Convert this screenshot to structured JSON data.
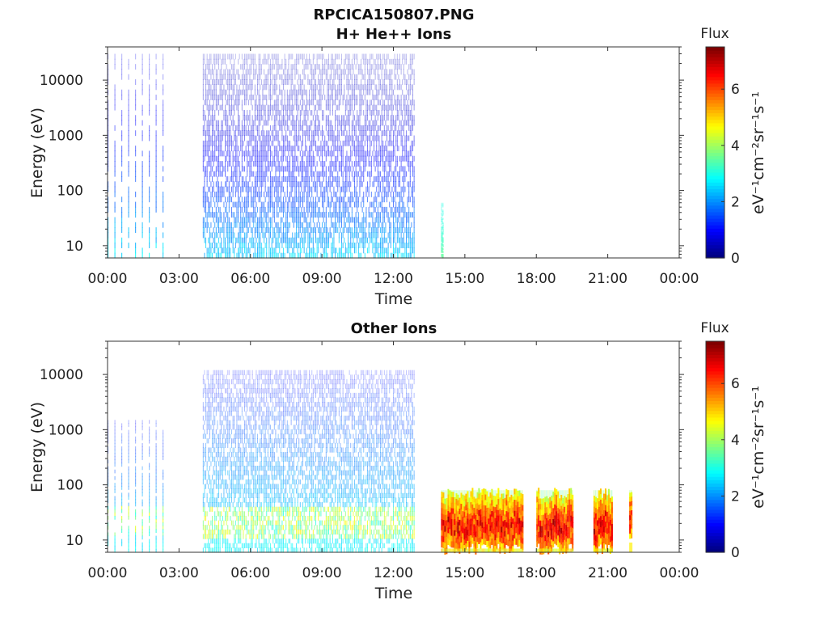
{
  "figure_title": "RPCICA150807.PNG",
  "chart_data": [
    {
      "type": "heatmap",
      "title": "H+ He++ Ions",
      "xlabel": "Time",
      "ylabel": "Energy (eV)",
      "x_ticks": [
        "00:00",
        "03:00",
        "06:00",
        "09:00",
        "12:00",
        "15:00",
        "18:00",
        "21:00",
        "00:00"
      ],
      "x_range_hours": [
        0,
        24
      ],
      "y_scale": "log",
      "y_ticks": [
        "10",
        "100",
        "1000",
        "10000"
      ],
      "y_range": [
        6,
        40000
      ],
      "colorbar": {
        "label": "Flux",
        "units": "eV⁻¹cm⁻²sr⁻¹s⁻¹",
        "ticks": [
          "0",
          "2",
          "4",
          "6"
        ],
        "range": [
          0,
          7.5
        ],
        "colormap": "jet"
      },
      "segments": [
        {
          "start_h": 0.0,
          "end_h": 2.5,
          "e_max": 30000,
          "style": "sparse-stripes",
          "peak_flux_low_e": 2.8,
          "bg_flux_high_e": 0.8
        },
        {
          "start_h": 4.0,
          "end_h": 12.9,
          "e_max": 30000,
          "style": "dense",
          "peak_flux_low_e": 2.6,
          "bg_flux_high_e": 0.5
        },
        {
          "start_h": 14.0,
          "end_h": 14.1,
          "e_max": 60,
          "style": "trace",
          "peak_flux_low_e": 3.6,
          "bg_flux_high_e": 3.0
        }
      ]
    },
    {
      "type": "heatmap",
      "title": "Other Ions",
      "xlabel": "Time",
      "ylabel": "Energy (eV)",
      "x_ticks": [
        "00:00",
        "03:00",
        "06:00",
        "09:00",
        "12:00",
        "15:00",
        "18:00",
        "21:00",
        "00:00"
      ],
      "x_range_hours": [
        0,
        24
      ],
      "y_scale": "log",
      "y_ticks": [
        "10",
        "100",
        "1000",
        "10000"
      ],
      "y_range": [
        6,
        40000
      ],
      "colorbar": {
        "label": "Flux",
        "units": "eV⁻¹cm⁻²sr⁻¹s⁻¹",
        "ticks": [
          "0",
          "2",
          "4",
          "6"
        ],
        "range": [
          0,
          7.5
        ],
        "colormap": "jet"
      },
      "segments": [
        {
          "start_h": 0.0,
          "end_h": 2.5,
          "e_max": 1500,
          "style": "sparse-stripes",
          "band_e": [
            12,
            45
          ],
          "band_flux": 4.0
        },
        {
          "start_h": 4.0,
          "end_h": 12.9,
          "e_max": 12000,
          "style": "dense",
          "band_e": [
            12,
            45
          ],
          "band_flux": 4.2
        },
        {
          "start_h": 14.0,
          "end_h": 17.4,
          "e_max": 80,
          "style": "intense",
          "band_e": [
            7,
            70
          ],
          "band_flux": 6.8
        },
        {
          "start_h": 18.0,
          "end_h": 19.5,
          "e_max": 80,
          "style": "intense",
          "band_e": [
            7,
            70
          ],
          "band_flux": 6.8
        },
        {
          "start_h": 20.4,
          "end_h": 21.2,
          "e_max": 80,
          "style": "intense",
          "band_e": [
            7,
            70
          ],
          "band_flux": 6.9
        },
        {
          "start_h": 21.9,
          "end_h": 22.0,
          "e_max": 80,
          "style": "intense",
          "band_e": [
            9,
            60
          ],
          "band_flux": 6.8
        }
      ]
    }
  ]
}
